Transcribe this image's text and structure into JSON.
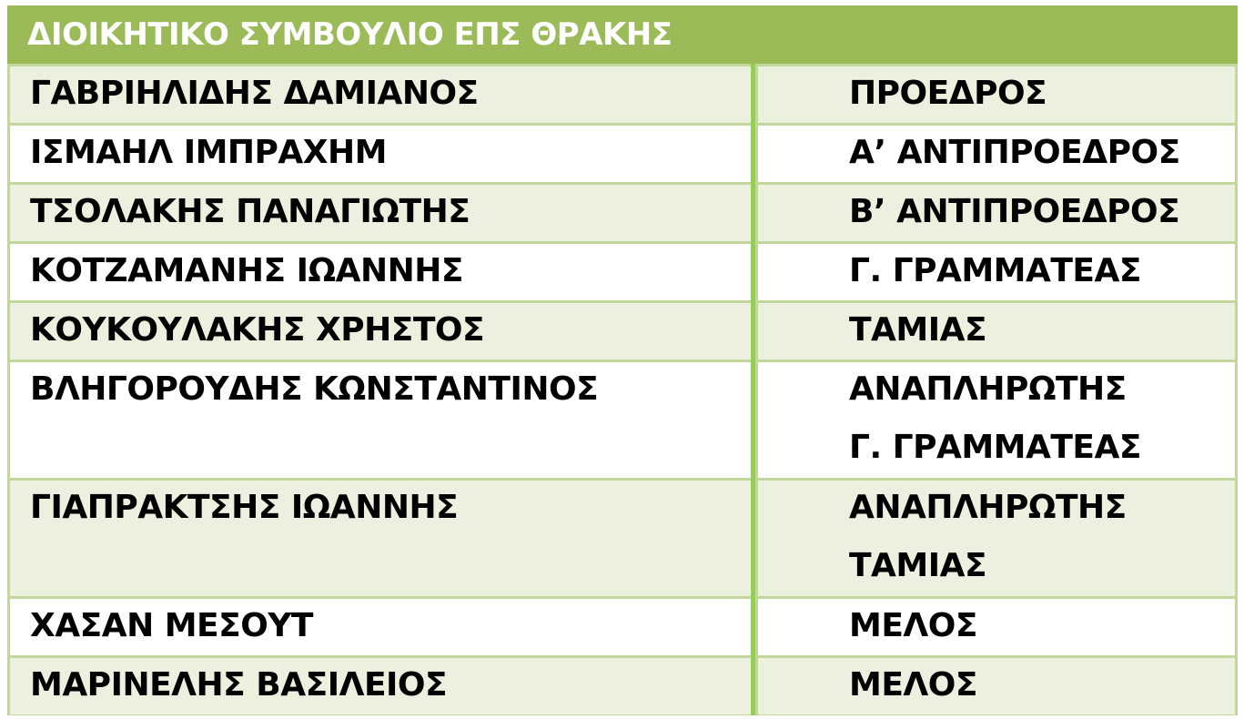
{
  "title": "ΔΙΟΙΚΗΤΙΚΟ ΣΥΜΒΟΥΛΙΟ ΕΠΣ ΘΡΑΚΗΣ",
  "colors": {
    "header": "#9bbb59",
    "band": "#ebf1de",
    "divider": "#92d050",
    "border": "#c3d69b"
  },
  "rows": [
    {
      "name": "ΓΑΒΡΙΗΛΙΔΗΣ ΔΑΜΙΑΝΟΣ",
      "role": [
        "ΠΡΟΕΔΡΟΣ"
      ]
    },
    {
      "name": "ΙΣΜΑΗΛ ΙΜΠΡΑΧΗΜ",
      "role": [
        "Α’ ΑΝΤΙΠΡΟΕΔΡΟΣ"
      ]
    },
    {
      "name": "ΤΣΟΛΑΚΗΣ ΠΑΝΑΓΙΩΤΗΣ",
      "role": [
        "Β’ ΑΝΤΙΠΡΟΕΔΡΟΣ"
      ]
    },
    {
      "name": "ΚΟΤΖΑΜΑΝΗΣ ΙΩΑΝΝΗΣ",
      "role": [
        "Γ. ΓΡΑΜΜΑΤΕΑΣ"
      ]
    },
    {
      "name": "ΚΟΥΚΟΥΛΑΚΗΣ ΧΡΗΣΤΟΣ",
      "role": [
        "ΤΑΜΙΑΣ"
      ]
    },
    {
      "name": "ΒΛΗΓΟΡΟΥΔΗΣ ΚΩΝΣΤΑΝΤΙΝΟΣ",
      "role": [
        "ΑΝΑΠΛΗΡΩΤΗΣ",
        "Γ. ΓΡΑΜΜΑΤΕΑΣ"
      ]
    },
    {
      "name": "ΓΙΑΠΡΑΚΤΣΗΣ ΙΩΑΝΝΗΣ",
      "role": [
        "ΑΝΑΠΛΗΡΩΤΗΣ",
        "ΤΑΜΙΑΣ"
      ]
    },
    {
      "name": "ΧΑΣΑΝ ΜΕΣΟΥΤ",
      "role": [
        "ΜΕΛΟΣ"
      ]
    },
    {
      "name": "ΜΑΡΙΝΕΛΗΣ ΒΑΣΙΛΕΙΟΣ",
      "role": [
        "ΜΕΛΟΣ"
      ]
    }
  ]
}
